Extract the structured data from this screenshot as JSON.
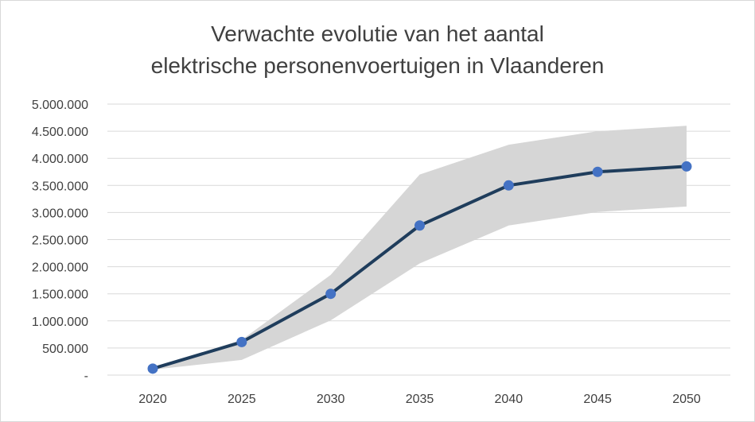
{
  "chart_data": {
    "type": "line",
    "title_lines": [
      "Verwachte evolutie van het aantal",
      "elektrische personenvoertuigen in Vlaanderen"
    ],
    "xlabel": "",
    "ylabel": "",
    "x": [
      "2020",
      "2025",
      "2030",
      "2035",
      "2040",
      "2045",
      "2050"
    ],
    "series": [
      {
        "values": [
          120000,
          610000,
          1500000,
          2760000,
          3500000,
          3750000,
          3850000
        ],
        "color": "#1f3d5c",
        "marker_color": "#4472c4"
      }
    ],
    "band": {
      "lower": [
        100000,
        280000,
        1010000,
        2060000,
        2760000,
        3010000,
        3110000
      ],
      "upper": [
        130000,
        650000,
        1850000,
        3700000,
        4250000,
        4500000,
        4600000
      ],
      "color": "#d6d6d6"
    },
    "ylim": [
      0,
      5000000
    ],
    "y_ticks": [
      {
        "value": 0,
        "label": "-"
      },
      {
        "value": 500000,
        "label": "500.000"
      },
      {
        "value": 1000000,
        "label": "1.000.000"
      },
      {
        "value": 1500000,
        "label": "1.500.000"
      },
      {
        "value": 2000000,
        "label": "2.000.000"
      },
      {
        "value": 2500000,
        "label": "2.500.000"
      },
      {
        "value": 3000000,
        "label": "3.000.000"
      },
      {
        "value": 3500000,
        "label": "3.500.000"
      },
      {
        "value": 4000000,
        "label": "4.000.000"
      },
      {
        "value": 4500000,
        "label": "4.500.000"
      },
      {
        "value": 5000000,
        "label": "5.000.000"
      }
    ],
    "grid": true,
    "legend": "none"
  }
}
